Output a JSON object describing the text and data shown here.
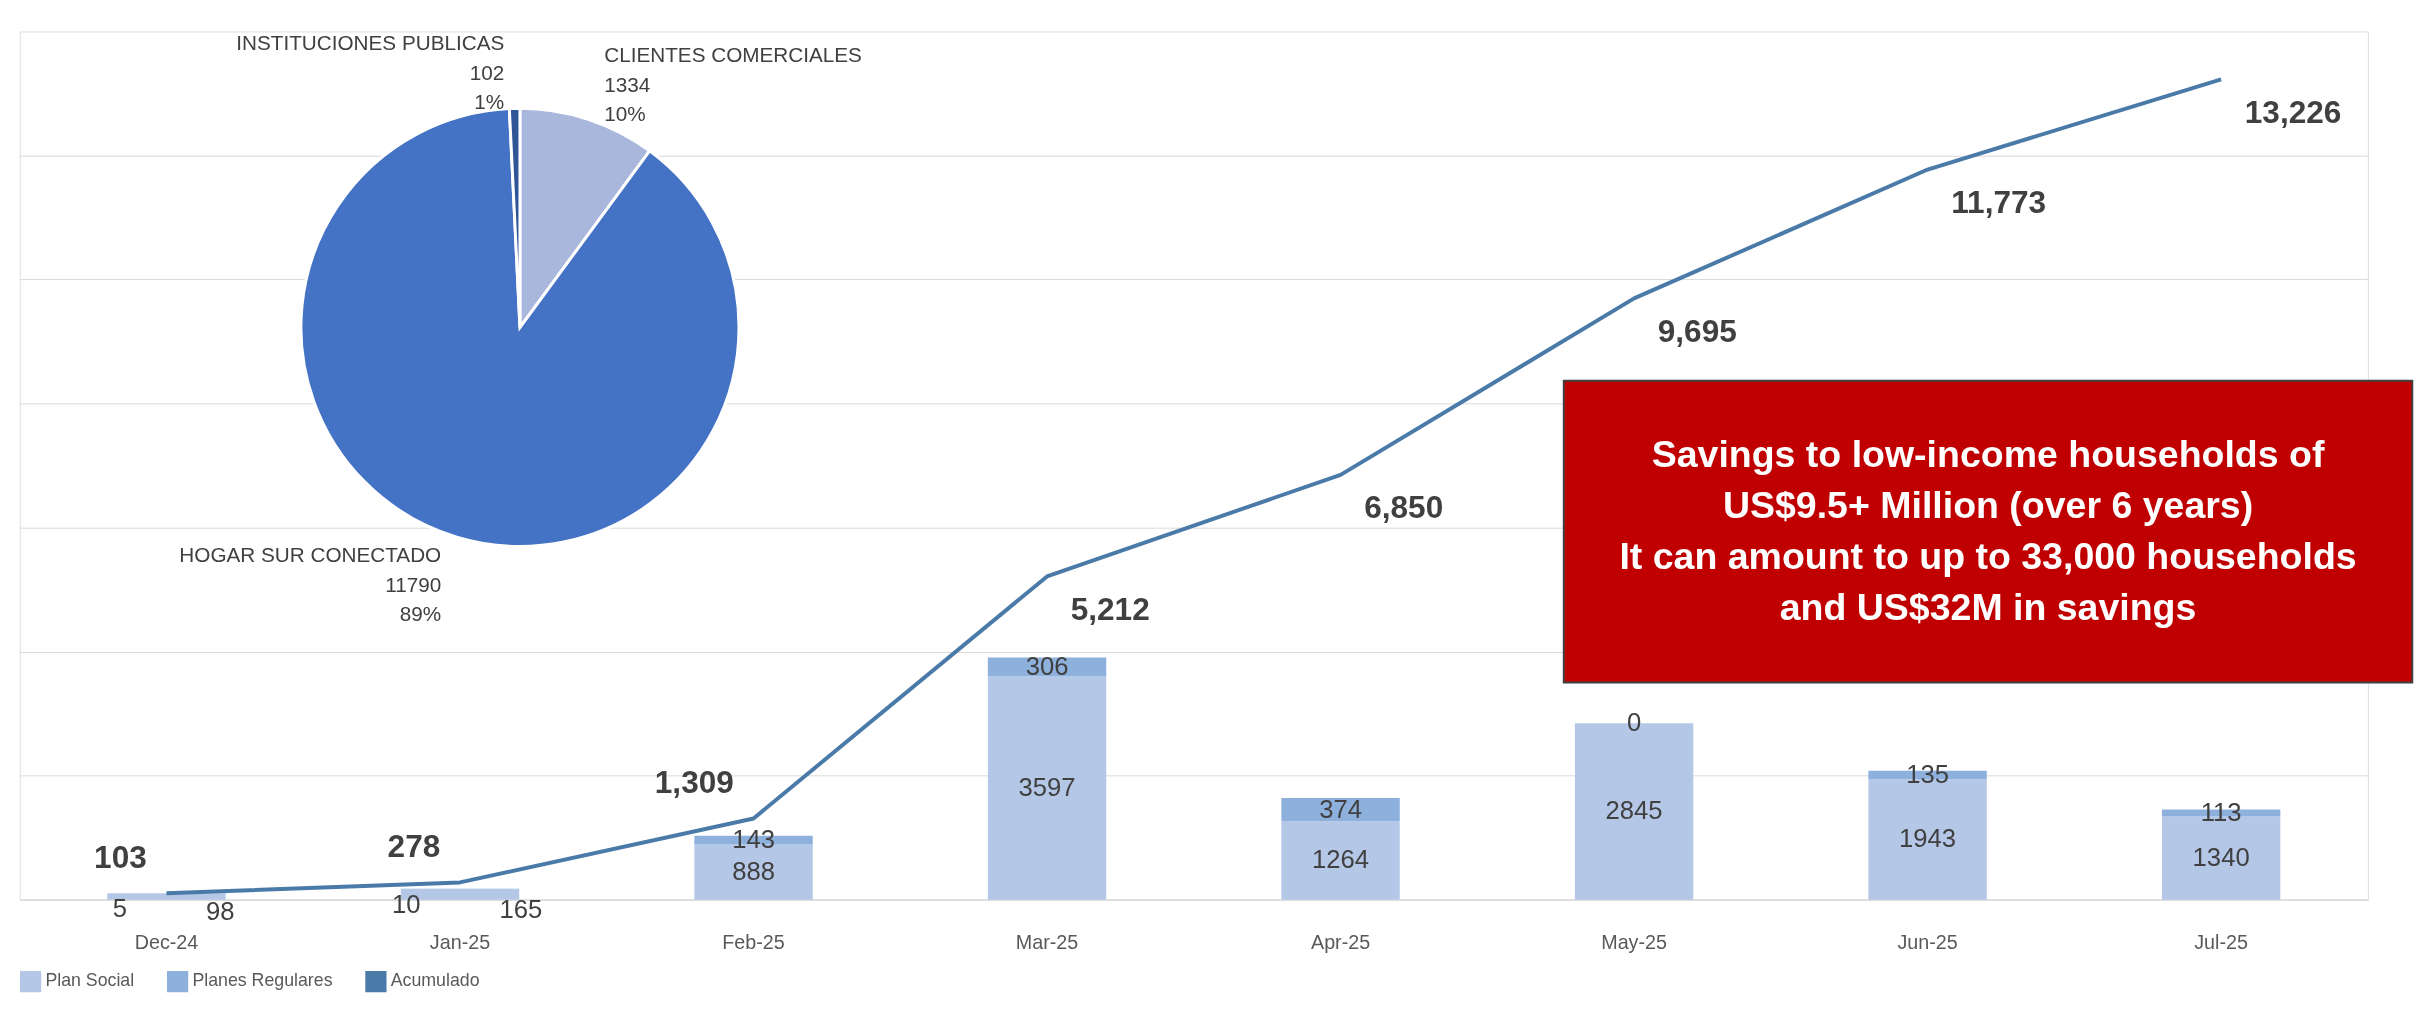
{
  "chart_data": [
    {
      "type": "bar",
      "stacked": true,
      "categories": [
        "Dec-24",
        "Jan-25",
        "Feb-25",
        "Mar-25",
        "Apr-25",
        "May-25",
        "Jun-25",
        "Jul-25"
      ],
      "series": [
        {
          "name": "Plan Social",
          "type": "bar",
          "color": "#b4c7e7",
          "values": [
            98,
            165,
            888,
            3597,
            1264,
            2845,
            1943,
            1340
          ]
        },
        {
          "name": "Planes Regulares",
          "type": "bar",
          "color": "#8eb0dd",
          "values": [
            5,
            10,
            143,
            306,
            374,
            0,
            135,
            113
          ]
        },
        {
          "name": "Acumulado",
          "type": "line",
          "color": "#4a7aa8",
          "values": [
            103,
            278,
            1309,
            5212,
            6850,
            9695,
            11773,
            13226
          ],
          "value_labels": [
            "103",
            "278",
            "1,309",
            "5,212",
            "6,850",
            "9,695",
            "11,773",
            "13,226"
          ]
        }
      ],
      "ylim": [
        0,
        14000
      ],
      "yticks": [
        {
          "value": 0,
          "label": null
        },
        {
          "value": 2000,
          "label": null
        },
        {
          "value": 4000,
          "label": null
        },
        {
          "value": 6000,
          "label": null
        },
        {
          "value": 8000,
          "label": null
        },
        {
          "value": 10000,
          "label": null
        },
        {
          "value": 12000,
          "label": null
        }
      ],
      "tick_labels": "x",
      "grid": "y",
      "legend": "bottom",
      "data_labels": true,
      "line_style": "solid",
      "marker": "none",
      "annotations": [
        "Savings to low-income households of\nUS$9.5+ Million (over 6 years)\nIt can amount to up to 33,000 households\nand US$32M in savings"
      ]
    },
    {
      "type": "pie",
      "categories": [
        "CLIENTES COMERCIALES",
        "HOGAR SUR CONECTADO",
        "INSTITUCIONES PUBLICAS"
      ],
      "values": [
        1334,
        11790,
        102
      ],
      "colors": [
        "#a9b7dc",
        "#4472c4",
        "#2f5597"
      ],
      "value_labels": [
        "1334\n10%",
        "11790\n89%",
        "102\n1%"
      ]
    }
  ]
}
